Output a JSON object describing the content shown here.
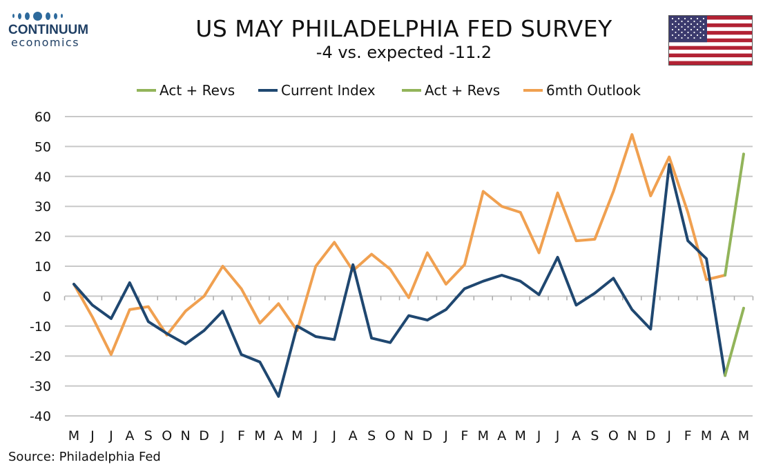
{
  "logo": {
    "name": "CONTINUUM",
    "sub": "economics"
  },
  "title": "US MAY PHILADELPHIA FED SURVEY",
  "subtitle": "-4 vs. expected -11.2",
  "source": "Source: Philadelphia Fed",
  "flag_icon": "us-flag-icon",
  "colors": {
    "current": "#1f4770",
    "outlook": "#f0a050",
    "revs": "#92b45a",
    "grid": "#c8c8c8"
  },
  "chart_data": {
    "type": "line",
    "categories": [
      "M",
      "J",
      "J",
      "A",
      "S",
      "O",
      "N",
      "D",
      "J",
      "F",
      "M",
      "A",
      "M",
      "J",
      "J",
      "A",
      "S",
      "O",
      "N",
      "D",
      "J",
      "F",
      "M",
      "A",
      "M",
      "J",
      "J",
      "A",
      "S",
      "O",
      "N",
      "D",
      "J",
      "F",
      "M",
      "A",
      "M"
    ],
    "yticks": [
      60,
      50,
      40,
      30,
      20,
      10,
      0,
      -10,
      -20,
      -30,
      -40
    ],
    "ylim": [
      -40,
      60
    ],
    "legend_placement": "top",
    "grid": true,
    "legend": [
      "Act + Revs",
      "Current Index",
      "Act + Revs",
      "6mth Outlook"
    ],
    "series": [
      {
        "name": "Current Index",
        "color": "#1f4770",
        "values": [
          4,
          -3,
          -7.5,
          4.5,
          -8.5,
          -12.5,
          -16,
          -11.5,
          -5,
          -19.5,
          -22,
          -33.5,
          -10,
          -13.5,
          -14.5,
          10.5,
          -14,
          -15.5,
          -6.5,
          -8,
          -4.5,
          2.5,
          5,
          7,
          5,
          0.5,
          13,
          -3,
          1,
          6,
          -4.5,
          -11,
          44,
          18.5,
          12.5,
          -26.5,
          null
        ]
      },
      {
        "name": "6mth Outlook",
        "color": "#f0a050",
        "values": [
          4,
          -7,
          -19.5,
          -4.5,
          -3.5,
          -13,
          -5,
          0,
          10,
          2.5,
          -9,
          -2.5,
          -11.5,
          10,
          18,
          8.5,
          14,
          9,
          -0.5,
          14.5,
          4,
          10.5,
          35,
          30,
          28,
          14.5,
          34.5,
          18.5,
          19,
          35,
          54,
          33.5,
          46.5,
          28,
          5.5,
          7,
          null
        ]
      },
      {
        "name": "Act + Revs",
        "color": "#92b45a",
        "values": [
          null,
          null,
          null,
          null,
          null,
          null,
          null,
          null,
          null,
          null,
          null,
          null,
          null,
          null,
          null,
          null,
          null,
          null,
          null,
          null,
          null,
          null,
          null,
          null,
          null,
          null,
          null,
          null,
          null,
          null,
          null,
          null,
          null,
          null,
          null,
          -26.5,
          -4
        ]
      },
      {
        "name": "Act + Revs",
        "color": "#92b45a",
        "values": [
          null,
          null,
          null,
          null,
          null,
          null,
          null,
          null,
          null,
          null,
          null,
          null,
          null,
          null,
          null,
          null,
          null,
          null,
          null,
          null,
          null,
          null,
          null,
          null,
          null,
          null,
          null,
          null,
          null,
          null,
          null,
          null,
          null,
          null,
          null,
          7,
          47.5
        ]
      }
    ]
  }
}
